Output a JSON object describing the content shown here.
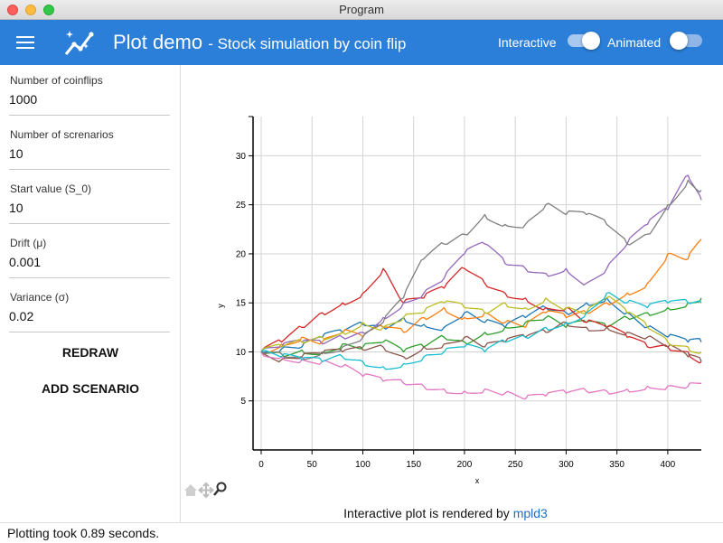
{
  "window": {
    "title": "Program"
  },
  "appbar": {
    "title": "Plot demo",
    "subtitle": "- Stock simulation by coin flip",
    "toggles": [
      {
        "label": "Interactive",
        "on": true
      },
      {
        "label": "Animated",
        "on": false
      }
    ],
    "colors": {
      "primary": "#2b7fd8"
    }
  },
  "sidebar": {
    "fields": [
      {
        "label": "Number of coinflips",
        "value": "1000"
      },
      {
        "label": "Number of screnarios",
        "value": "10"
      },
      {
        "label": "Start value (S_0)",
        "value": "10"
      },
      {
        "label": "Drift (μ)",
        "value": "0.001"
      },
      {
        "label": "Variance (σ)",
        "value": "0.02"
      }
    ],
    "buttons": {
      "redraw": "REDRAW",
      "add_scenario": "ADD SCENARIO"
    }
  },
  "plot": {
    "caption_prefix": "Interactive plot is rendered by ",
    "caption_link": "mpld3",
    "toolbar": [
      "home-icon",
      "pan-icon",
      "zoom-icon"
    ]
  },
  "chart_data": {
    "type": "line",
    "title": "",
    "xlabel": "x",
    "ylabel": "y",
    "xlim": [
      -8,
      433
    ],
    "ylim": [
      0,
      34
    ],
    "xticks": [
      0,
      50,
      100,
      150,
      200,
      250,
      300,
      350,
      400
    ],
    "yticks": [
      5,
      10,
      15,
      20,
      25,
      30
    ],
    "grid": true,
    "series": [
      {
        "color": "#1f77b4",
        "points": [
          [
            0,
            10
          ],
          [
            20,
            10.3
          ],
          [
            40,
            10.5
          ],
          [
            60,
            11.5
          ],
          [
            80,
            12
          ],
          [
            100,
            12.8
          ],
          [
            120,
            12.5
          ],
          [
            140,
            13.5
          ],
          [
            160,
            12.8
          ],
          [
            180,
            12.5
          ],
          [
            200,
            14
          ],
          [
            220,
            13
          ],
          [
            240,
            12.5
          ],
          [
            260,
            13.5
          ],
          [
            280,
            14.5
          ],
          [
            300,
            14
          ],
          [
            320,
            15
          ],
          [
            340,
            15.5
          ],
          [
            360,
            14
          ],
          [
            380,
            12.5
          ],
          [
            400,
            11.5
          ],
          [
            420,
            11
          ],
          [
            433,
            11
          ]
        ]
      },
      {
        "color": "#ff7f0e",
        "points": [
          [
            0,
            10
          ],
          [
            20,
            10.8
          ],
          [
            40,
            11.5
          ],
          [
            60,
            11
          ],
          [
            80,
            12
          ],
          [
            100,
            11.5
          ],
          [
            120,
            12.5
          ],
          [
            140,
            12
          ],
          [
            160,
            13.5
          ],
          [
            180,
            14.5
          ],
          [
            200,
            13.5
          ],
          [
            220,
            14
          ],
          [
            240,
            13
          ],
          [
            260,
            12.5
          ],
          [
            280,
            14
          ],
          [
            300,
            13.5
          ],
          [
            320,
            14
          ],
          [
            340,
            15
          ],
          [
            360,
            16
          ],
          [
            380,
            17
          ],
          [
            400,
            20
          ],
          [
            420,
            19.5
          ],
          [
            433,
            21.5
          ]
        ]
      },
      {
        "color": "#2ca02c",
        "points": [
          [
            0,
            10
          ],
          [
            20,
            9.8
          ],
          [
            40,
            10.2
          ],
          [
            60,
            10
          ],
          [
            80,
            10.8
          ],
          [
            100,
            10.5
          ],
          [
            120,
            11
          ],
          [
            140,
            10
          ],
          [
            160,
            10.5
          ],
          [
            180,
            11.5
          ],
          [
            200,
            11
          ],
          [
            220,
            12
          ],
          [
            240,
            12.5
          ],
          [
            260,
            13
          ],
          [
            280,
            13.5
          ],
          [
            300,
            12.5
          ],
          [
            320,
            13
          ],
          [
            340,
            12.5
          ],
          [
            360,
            13.5
          ],
          [
            380,
            14
          ],
          [
            400,
            14.5
          ],
          [
            420,
            15
          ],
          [
            433,
            15.5
          ]
        ]
      },
      {
        "color": "#d62728",
        "points": [
          [
            0,
            10
          ],
          [
            20,
            11
          ],
          [
            40,
            12.5
          ],
          [
            60,
            14
          ],
          [
            80,
            15
          ],
          [
            100,
            16
          ],
          [
            120,
            18.5
          ],
          [
            140,
            15
          ],
          [
            160,
            15.5
          ],
          [
            180,
            16.5
          ],
          [
            200,
            18.5
          ],
          [
            220,
            17
          ],
          [
            240,
            16
          ],
          [
            260,
            15.5
          ],
          [
            280,
            14.5
          ],
          [
            300,
            14.5
          ],
          [
            320,
            13
          ],
          [
            340,
            12.5
          ],
          [
            360,
            11.5
          ],
          [
            380,
            10.5
          ],
          [
            400,
            10.5
          ],
          [
            420,
            10
          ],
          [
            433,
            9
          ]
        ]
      },
      {
        "color": "#9467bd",
        "points": [
          [
            0,
            10
          ],
          [
            20,
            10.5
          ],
          [
            40,
            11
          ],
          [
            60,
            10.8
          ],
          [
            80,
            11.5
          ],
          [
            100,
            12
          ],
          [
            120,
            13.5
          ],
          [
            140,
            15
          ],
          [
            160,
            16
          ],
          [
            180,
            17.5
          ],
          [
            200,
            20
          ],
          [
            220,
            21
          ],
          [
            240,
            19
          ],
          [
            260,
            18.5
          ],
          [
            280,
            18
          ],
          [
            300,
            18.5
          ],
          [
            320,
            17
          ],
          [
            340,
            18.5
          ],
          [
            360,
            21
          ],
          [
            380,
            23
          ],
          [
            400,
            24.5
          ],
          [
            420,
            28
          ],
          [
            433,
            25.5
          ]
        ]
      },
      {
        "color": "#8c564b",
        "points": [
          [
            0,
            10
          ],
          [
            20,
            9.2
          ],
          [
            40,
            9.5
          ],
          [
            60,
            9.8
          ],
          [
            80,
            10
          ],
          [
            100,
            10.2
          ],
          [
            120,
            10.5
          ],
          [
            140,
            9.5
          ],
          [
            160,
            10.5
          ],
          [
            180,
            10.8
          ],
          [
            200,
            11.5
          ],
          [
            220,
            10.5
          ],
          [
            240,
            11
          ],
          [
            260,
            11.5
          ],
          [
            280,
            12
          ],
          [
            300,
            13
          ],
          [
            320,
            12.5
          ],
          [
            340,
            12.5
          ],
          [
            360,
            12
          ],
          [
            380,
            11.5
          ],
          [
            400,
            10.5
          ],
          [
            420,
            9.5
          ],
          [
            433,
            9
          ]
        ]
      },
      {
        "color": "#e377c2",
        "points": [
          [
            0,
            10
          ],
          [
            20,
            9.5
          ],
          [
            40,
            9.2
          ],
          [
            60,
            9
          ],
          [
            80,
            8.5
          ],
          [
            100,
            7.5
          ],
          [
            120,
            7
          ],
          [
            140,
            6.8
          ],
          [
            160,
            6.5
          ],
          [
            180,
            6.2
          ],
          [
            200,
            6
          ],
          [
            220,
            6.2
          ],
          [
            240,
            5.8
          ],
          [
            260,
            5.2
          ],
          [
            280,
            5.5
          ],
          [
            300,
            5.8
          ],
          [
            320,
            6
          ],
          [
            340,
            6
          ],
          [
            360,
            6.2
          ],
          [
            380,
            6.5
          ],
          [
            400,
            6.5
          ],
          [
            420,
            6.5
          ],
          [
            433,
            6.8
          ]
        ]
      },
      {
        "color": "#7f7f7f",
        "points": [
          [
            0,
            10
          ],
          [
            20,
            9.8
          ],
          [
            40,
            9.5
          ],
          [
            60,
            10
          ],
          [
            80,
            10.5
          ],
          [
            100,
            11.5
          ],
          [
            120,
            13
          ],
          [
            140,
            15.5
          ],
          [
            160,
            19.5
          ],
          [
            180,
            21
          ],
          [
            200,
            22
          ],
          [
            220,
            24
          ],
          [
            240,
            23
          ],
          [
            260,
            23
          ],
          [
            280,
            25
          ],
          [
            300,
            24
          ],
          [
            320,
            24
          ],
          [
            340,
            23
          ],
          [
            360,
            21
          ],
          [
            380,
            22
          ],
          [
            400,
            25
          ],
          [
            420,
            27.5
          ],
          [
            433,
            26.5
          ]
        ]
      },
      {
        "color": "#bcbd22",
        "points": [
          [
            0,
            10
          ],
          [
            20,
            10.5
          ],
          [
            40,
            11
          ],
          [
            60,
            11.5
          ],
          [
            80,
            12
          ],
          [
            100,
            13
          ],
          [
            120,
            12.5
          ],
          [
            140,
            13.5
          ],
          [
            160,
            14
          ],
          [
            180,
            15
          ],
          [
            200,
            14.5
          ],
          [
            220,
            14
          ],
          [
            240,
            15
          ],
          [
            260,
            14.5
          ],
          [
            280,
            15.5
          ],
          [
            300,
            14.5
          ],
          [
            320,
            14
          ],
          [
            340,
            15.5
          ],
          [
            360,
            14
          ],
          [
            380,
            12.5
          ],
          [
            400,
            11
          ],
          [
            420,
            10.5
          ],
          [
            433,
            10
          ]
        ]
      },
      {
        "color": "#17becf",
        "points": [
          [
            0,
            10
          ],
          [
            20,
            9.5
          ],
          [
            40,
            9.2
          ],
          [
            60,
            9
          ],
          [
            80,
            9.5
          ],
          [
            100,
            9
          ],
          [
            120,
            8.5
          ],
          [
            140,
            8.8
          ],
          [
            160,
            9.5
          ],
          [
            180,
            10
          ],
          [
            200,
            10.5
          ],
          [
            220,
            10
          ],
          [
            240,
            11
          ],
          [
            260,
            11.5
          ],
          [
            280,
            12.5
          ],
          [
            300,
            13
          ],
          [
            320,
            14
          ],
          [
            340,
            16
          ],
          [
            360,
            15
          ],
          [
            380,
            14.5
          ],
          [
            400,
            15
          ],
          [
            420,
            15
          ],
          [
            433,
            15
          ]
        ]
      }
    ]
  }
}
